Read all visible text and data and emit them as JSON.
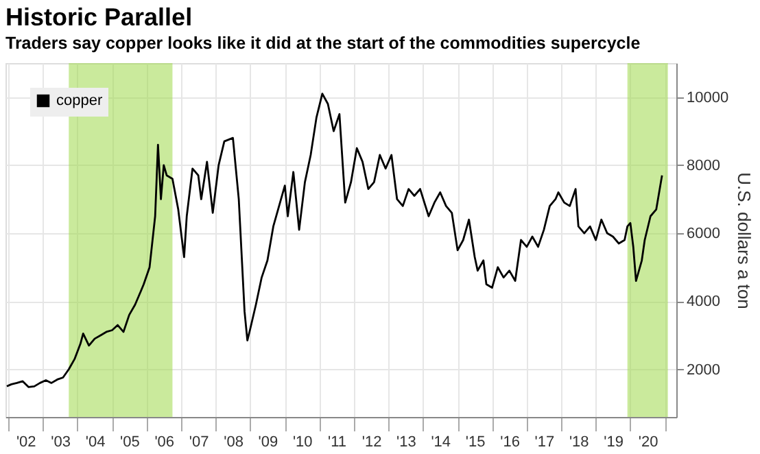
{
  "chart_data": {
    "type": "line",
    "title": "Historic Parallel",
    "subtitle": "Traders say copper looks like it did at the start of the commodities supercycle",
    "ylabel": "U.S. dollars a ton",
    "series": [
      {
        "name": "copper",
        "color": "#000000",
        "x": [
          "2001-12-15",
          "2002-02",
          "2002-04",
          "2002-06",
          "2002-08",
          "2002-10",
          "2002-12",
          "2003-02",
          "2003-04",
          "2003-06",
          "2003-08",
          "2003-10",
          "2003-12",
          "2004-02",
          "2004-03",
          "2004-05",
          "2004-07",
          "2004-09",
          "2004-11",
          "2005-01",
          "2005-03",
          "2005-05",
          "2005-07",
          "2005-09",
          "2005-11",
          "2005-12",
          "2006-02",
          "2006-04",
          "2006-05",
          "2006-06",
          "2006-07",
          "2006-08",
          "2006-10",
          "2006-12",
          "2007-02",
          "2007-03",
          "2007-05",
          "2007-07",
          "2007-08",
          "2007-10",
          "2007-12",
          "2008-02",
          "2008-04",
          "2008-07",
          "2008-09",
          "2008-11",
          "2008-12",
          "2009-01",
          "2009-03",
          "2009-05",
          "2009-07",
          "2009-09",
          "2009-11",
          "2010-01",
          "2010-02",
          "2010-04",
          "2010-06",
          "2010-08",
          "2010-10",
          "2010-12",
          "2011-02",
          "2011-04",
          "2011-06",
          "2011-08",
          "2011-10",
          "2011-12",
          "2012-02",
          "2012-04",
          "2012-06",
          "2012-08",
          "2012-10",
          "2012-12",
          "2013-02",
          "2013-04",
          "2013-06",
          "2013-08",
          "2013-10",
          "2013-12",
          "2014-03",
          "2014-05",
          "2014-07",
          "2014-09",
          "2014-11",
          "2015-01",
          "2015-03",
          "2015-05",
          "2015-07",
          "2015-08",
          "2015-10",
          "2015-11",
          "2016-01",
          "2016-03",
          "2016-05",
          "2016-07",
          "2016-09",
          "2016-11",
          "2017-01",
          "2017-03",
          "2017-05",
          "2017-07",
          "2017-09",
          "2017-11",
          "2017-12",
          "2018-02",
          "2018-04",
          "2018-06",
          "2018-07",
          "2018-09",
          "2018-11",
          "2019-01",
          "2019-03",
          "2019-05",
          "2019-07",
          "2019-09",
          "2019-11",
          "2019-12",
          "2020-01",
          "2020-02",
          "2020-03",
          "2020-05",
          "2020-06",
          "2020-08",
          "2020-10",
          "2020-12"
        ],
        "values": [
          1500,
          1560,
          1600,
          1650,
          1480,
          1500,
          1600,
          1680,
          1600,
          1700,
          1760,
          2000,
          2300,
          2750,
          3050,
          2700,
          2900,
          3000,
          3100,
          3150,
          3300,
          3100,
          3600,
          3900,
          4300,
          4500,
          5000,
          6500,
          8600,
          7000,
          8000,
          7700,
          7600,
          6700,
          5300,
          6500,
          7900,
          7700,
          7000,
          8100,
          6600,
          8000,
          8700,
          8800,
          7000,
          3700,
          2850,
          3200,
          3900,
          4700,
          5200,
          6200,
          6800,
          7400,
          6500,
          7800,
          6100,
          7500,
          8300,
          9400,
          10100,
          9800,
          9000,
          9500,
          6900,
          7500,
          8500,
          8100,
          7300,
          7500,
          8300,
          7900,
          8300,
          7000,
          6800,
          7300,
          7100,
          7300,
          6500,
          6900,
          7200,
          6800,
          6600,
          5500,
          5800,
          6400,
          5300,
          4900,
          5200,
          4500,
          4400,
          5000,
          4700,
          4900,
          4600,
          5800,
          5600,
          5900,
          5600,
          6100,
          6800,
          7000,
          7200,
          6900,
          6800,
          7300,
          6200,
          6000,
          6200,
          5800,
          6400,
          6000,
          5900,
          5700,
          5800,
          6200,
          6300,
          5600,
          4600,
          5200,
          5800,
          6500,
          6700,
          7700
        ]
      }
    ],
    "xlim": [
      "2001-12-01",
      "2021-05-01"
    ],
    "xticks": [
      {
        "value": "2002",
        "label": null
      },
      {
        "value": "2002-07",
        "label": "'02"
      },
      {
        "value": "2003",
        "label": null
      },
      {
        "value": "2003-07",
        "label": "'03"
      },
      {
        "value": "2004",
        "label": null
      },
      {
        "value": "2004-07",
        "label": "'04"
      },
      {
        "value": "2005",
        "label": null
      },
      {
        "value": "2005-07",
        "label": "'05"
      },
      {
        "value": "2006",
        "label": null
      },
      {
        "value": "2006-07",
        "label": "'06"
      },
      {
        "value": "2007",
        "label": null
      },
      {
        "value": "2007-07",
        "label": "'07"
      },
      {
        "value": "2008",
        "label": null
      },
      {
        "value": "2008-07",
        "label": "'08"
      },
      {
        "value": "2009",
        "label": null
      },
      {
        "value": "2009-07",
        "label": "'09"
      },
      {
        "value": "2010",
        "label": null
      },
      {
        "value": "2010-07",
        "label": "'10"
      },
      {
        "value": "2011",
        "label": null
      },
      {
        "value": "2011-07",
        "label": "'11"
      },
      {
        "value": "2012",
        "label": null
      },
      {
        "value": "2012-07",
        "label": "'12"
      },
      {
        "value": "2013",
        "label": null
      },
      {
        "value": "2013-07",
        "label": "'13"
      },
      {
        "value": "2014",
        "label": null
      },
      {
        "value": "2014-07",
        "label": "'14"
      },
      {
        "value": "2015",
        "label": null
      },
      {
        "value": "2015-07",
        "label": "'15"
      },
      {
        "value": "2016",
        "label": null
      },
      {
        "value": "2016-07",
        "label": "'16"
      },
      {
        "value": "2017",
        "label": null
      },
      {
        "value": "2017-07",
        "label": "'17"
      },
      {
        "value": "2018",
        "label": null
      },
      {
        "value": "2018-07",
        "label": "'18"
      },
      {
        "value": "2019",
        "label": null
      },
      {
        "value": "2019-07",
        "label": "'19"
      },
      {
        "value": "2020",
        "label": null
      },
      {
        "value": "2020-07",
        "label": "'20"
      },
      {
        "value": "2021",
        "label": null
      }
    ],
    "ylim": [
      600,
      11000
    ],
    "yticks": [
      2000,
      4000,
      6000,
      8000,
      10000
    ],
    "bands": [
      {
        "axis": "x",
        "from": "2003-10",
        "to": "2006-10",
        "color": "#9ed94a"
      },
      {
        "axis": "x",
        "from": "2019-12",
        "to": "2021-02",
        "color": "#9ed94a"
      }
    ],
    "grid": true,
    "legend": "top left",
    "line_style": "solid",
    "marker": "none"
  }
}
